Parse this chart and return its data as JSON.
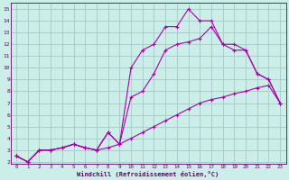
{
  "xlabel": "Windchill (Refroidissement éolien,°C)",
  "bg_color": "#cceee8",
  "grid_color": "#aacccc",
  "line_color": "#aa00aa",
  "spine_color": "#660066",
  "xlim": [
    -0.5,
    23.5
  ],
  "ylim": [
    1.8,
    15.5
  ],
  "xticks": [
    0,
    1,
    2,
    3,
    4,
    5,
    6,
    7,
    8,
    9,
    10,
    11,
    12,
    13,
    14,
    15,
    16,
    17,
    18,
    19,
    20,
    21,
    22,
    23
  ],
  "yticks": [
    2,
    3,
    4,
    5,
    6,
    7,
    8,
    9,
    10,
    11,
    12,
    13,
    14,
    15
  ],
  "line1_x": [
    0,
    1,
    2,
    3,
    4,
    5,
    6,
    7,
    8,
    9,
    10,
    11,
    12,
    13,
    14,
    15,
    16,
    17,
    18,
    19,
    20,
    21,
    22,
    23
  ],
  "line1_y": [
    2.5,
    2.0,
    3.0,
    3.0,
    3.2,
    3.5,
    3.2,
    3.0,
    3.2,
    3.5,
    4.0,
    4.5,
    5.0,
    5.5,
    6.0,
    6.5,
    7.0,
    7.3,
    7.5,
    7.8,
    8.0,
    8.3,
    8.5,
    7.0
  ],
  "line2_x": [
    0,
    1,
    2,
    3,
    4,
    5,
    6,
    7,
    8,
    9,
    10,
    11,
    12,
    13,
    14,
    15,
    16,
    17,
    18,
    19,
    20,
    21,
    22,
    23
  ],
  "line2_y": [
    2.5,
    2.0,
    3.0,
    3.0,
    3.2,
    3.5,
    3.2,
    3.0,
    4.5,
    3.5,
    7.5,
    8.0,
    9.5,
    11.5,
    12.0,
    12.2,
    12.5,
    13.5,
    12.0,
    11.5,
    11.5,
    9.5,
    9.0,
    7.0
  ],
  "line3_x": [
    0,
    1,
    2,
    3,
    4,
    5,
    6,
    7,
    8,
    9,
    10,
    11,
    12,
    13,
    14,
    15,
    16,
    17,
    18,
    19,
    20,
    21,
    22,
    23
  ],
  "line3_y": [
    2.5,
    2.0,
    3.0,
    3.0,
    3.2,
    3.5,
    3.2,
    3.0,
    4.5,
    3.5,
    10.0,
    11.5,
    12.0,
    13.5,
    13.5,
    15.0,
    14.0,
    14.0,
    12.0,
    12.0,
    11.5,
    9.5,
    9.0,
    7.0
  ]
}
